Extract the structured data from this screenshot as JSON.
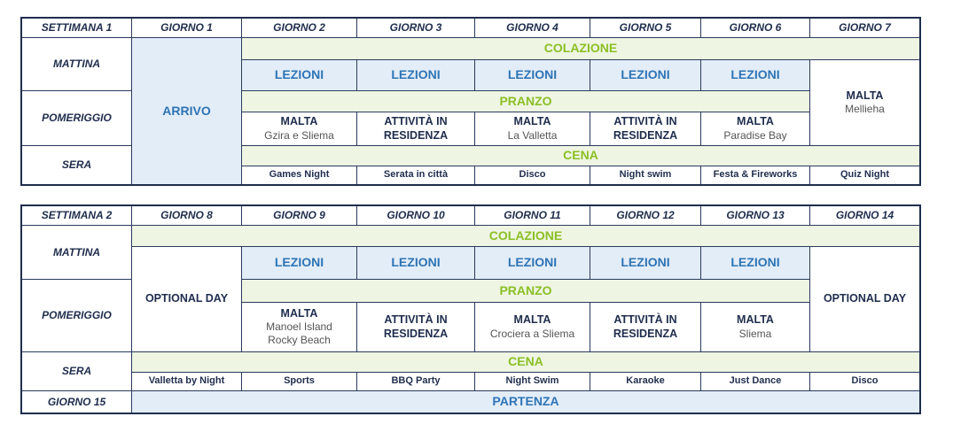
{
  "week1": {
    "header": [
      "SETTIMANA 1",
      "GIORNO 1",
      "GIORNO 2",
      "GIORNO 3",
      "GIORNO 4",
      "GIORNO 5",
      "GIORNO 6",
      "GIORNO 7"
    ],
    "row_labels": [
      "MATTINA",
      "POMERIGGIO",
      "SERA"
    ],
    "arrival": "ARRIVO",
    "breakfast": "COLAZIONE",
    "lessons": [
      "LEZIONI",
      "LEZIONI",
      "LEZIONI",
      "LEZIONI",
      "LEZIONI"
    ],
    "lunch": "PRANZO",
    "afternoon": [
      {
        "title": "MALTA",
        "details": [
          "Gzira e Sliema"
        ]
      },
      {
        "title": "ATTIVITÀ IN RESIDENZA",
        "details": []
      },
      {
        "title": "MALTA",
        "details": [
          "La Valletta"
        ]
      },
      {
        "title": "ATTIVITÀ IN RESIDENZA",
        "details": []
      },
      {
        "title": "MALTA",
        "details": [
          "Paradise Bay"
        ]
      }
    ],
    "day7": {
      "title": "MALTA",
      "details": [
        "Mellieha"
      ]
    },
    "dinner": "CENA",
    "evening": [
      "Games Night",
      "Serata in città",
      "Disco",
      "Night swim",
      "Festa & Fireworks",
      "Quiz Night"
    ]
  },
  "week2": {
    "header": [
      "SETTIMANA 2",
      "GIORNO 8",
      "GIORNO 9",
      "GIORNO 10",
      "GIORNO 11",
      "GIORNO 12",
      "GIORNO 13",
      "GIORNO 14"
    ],
    "row_labels": [
      "MATTINA",
      "POMERIGGIO",
      "SERA"
    ],
    "breakfast": "COLAZIONE",
    "day8": "OPTIONAL DAY",
    "lessons": [
      "LEZIONI",
      "LEZIONI",
      "LEZIONI",
      "LEZIONI",
      "LEZIONI"
    ],
    "day14": "OPTIONAL DAY",
    "lunch": "PRANZO",
    "afternoon": [
      {
        "title": "MALTA",
        "details": [
          "Manoel Island",
          "Rocky Beach"
        ]
      },
      {
        "title": "ATTIVITÀ IN RESIDENZA",
        "details": []
      },
      {
        "title": "MALTA",
        "details": [
          "Crociera a Sliema"
        ]
      },
      {
        "title": "ATTIVITÀ IN RESIDENZA",
        "details": []
      },
      {
        "title": "MALTA",
        "details": [
          "Sliema"
        ]
      }
    ],
    "dinner": "CENA",
    "evening": [
      "Valletta by Night",
      "Sports",
      "BBQ Party",
      "Night Swim",
      "Karaoke",
      "Just Dance",
      "Disco"
    ],
    "last_day_label": "GIORNO 15",
    "departure": "PARTENZA"
  }
}
